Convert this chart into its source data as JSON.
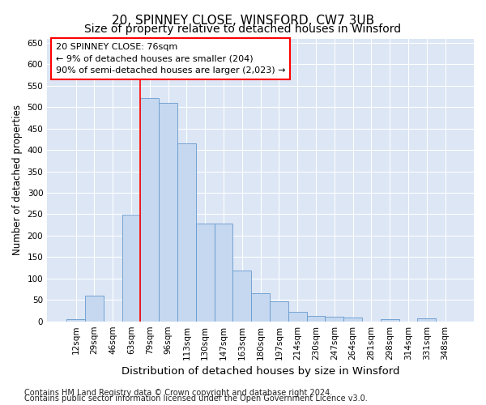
{
  "title": "20, SPINNEY CLOSE, WINSFORD, CW7 3UB",
  "subtitle": "Size of property relative to detached houses in Winsford",
  "xlabel": "Distribution of detached houses by size in Winsford",
  "ylabel": "Number of detached properties",
  "categories": [
    "12sqm",
    "29sqm",
    "46sqm",
    "63sqm",
    "79sqm",
    "96sqm",
    "113sqm",
    "130sqm",
    "147sqm",
    "163sqm",
    "180sqm",
    "197sqm",
    "214sqm",
    "230sqm",
    "247sqm",
    "264sqm",
    "281sqm",
    "298sqm",
    "314sqm",
    "331sqm",
    "348sqm"
  ],
  "values": [
    5,
    60,
    0,
    248,
    522,
    510,
    415,
    228,
    228,
    118,
    65,
    47,
    22,
    13,
    10,
    9,
    0,
    5,
    0,
    7,
    0
  ],
  "bar_color": "#c5d8f0",
  "bar_edge_color": "#6699cc",
  "bg_color": "#dce6f5",
  "grid_color": "#ffffff",
  "annotation_line1": "20 SPINNEY CLOSE: 76sqm",
  "annotation_line2": "← 9% of detached houses are smaller (204)",
  "annotation_line3": "90% of semi-detached houses are larger (2,023) →",
  "vline_x": 3.5,
  "ylim_max": 660,
  "yticks": [
    0,
    50,
    100,
    150,
    200,
    250,
    300,
    350,
    400,
    450,
    500,
    550,
    600,
    650
  ],
  "footer_line1": "Contains HM Land Registry data © Crown copyright and database right 2024.",
  "footer_line2": "Contains public sector information licensed under the Open Government Licence v3.0.",
  "title_fontsize": 11,
  "subtitle_fontsize": 10,
  "xlabel_fontsize": 9.5,
  "ylabel_fontsize": 8.5,
  "tick_fontsize": 7.5,
  "annotation_fontsize": 8,
  "footer_fontsize": 7
}
